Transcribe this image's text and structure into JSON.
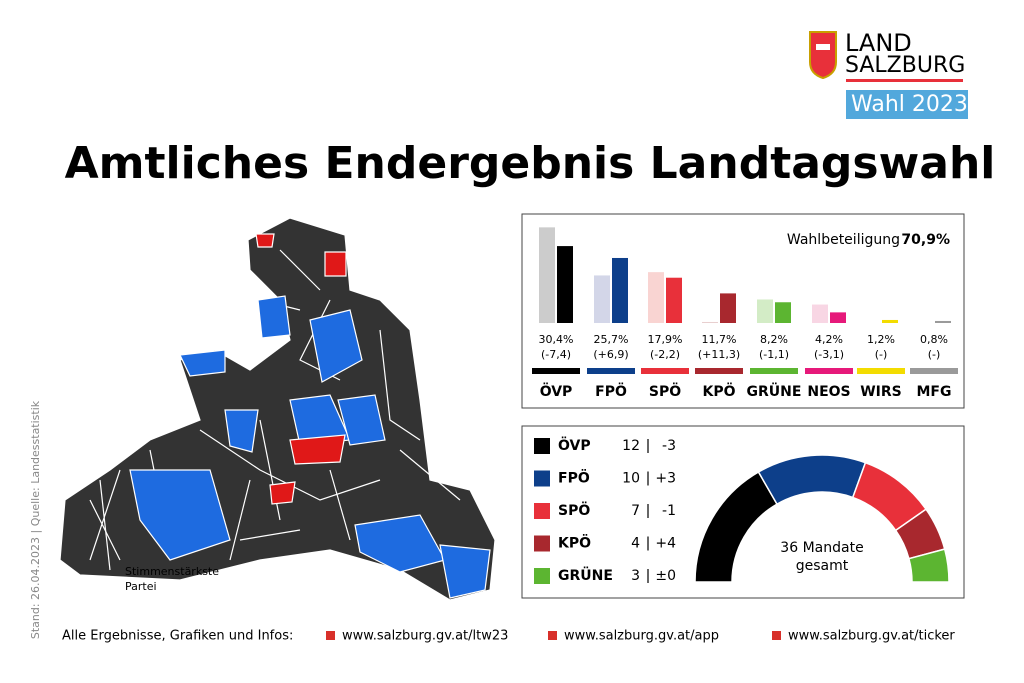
{
  "header": {
    "logo_line1": "LAND",
    "logo_line2": "SALZBURG",
    "badge": "Wahl 2023",
    "title": "Amtliches Endergebnis Landtagswahl"
  },
  "chart_data": [
    {
      "type": "bar",
      "turnout_label": "Wahlbeteiligung",
      "turnout": "70,9%",
      "categories": [
        "ÖVP",
        "FPÖ",
        "SPÖ",
        "KPÖ",
        "GRÜNE",
        "NEOS",
        "WIRS",
        "MFG"
      ],
      "values": [
        30.4,
        25.7,
        17.9,
        11.7,
        8.2,
        4.2,
        1.2,
        0.8
      ],
      "value_labels": [
        "30,4%",
        "25,7%",
        "17,9%",
        "11,7%",
        "8,2%",
        "4,2%",
        "1,2%",
        "0,8%"
      ],
      "previous_values": [
        37.8,
        18.8,
        20.1,
        0.4,
        9.3,
        7.3,
        null,
        null
      ],
      "change_labels": [
        "(-7,4)",
        "(+6,9)",
        "(-2,2)",
        "(+11,3)",
        "(-1,1)",
        "(-3,1)",
        "(-)",
        "(-)"
      ],
      "colors": [
        "#000000",
        "#0d3f8a",
        "#e8303a",
        "#a8282e",
        "#5cb531",
        "#e6197a",
        "#f3dc00",
        "#9a9a9a"
      ],
      "previous_colors": [
        "#cccccc",
        "#d3d6e8",
        "#f9d4d2",
        "#e8cfcf",
        "#d3ecc6",
        "#f8d6e4",
        "#fbf4b0",
        "#dddddd"
      ]
    },
    {
      "type": "donut",
      "categories": [
        "ÖVP",
        "FPÖ",
        "SPÖ",
        "KPÖ",
        "GRÜNE"
      ],
      "values": [
        12,
        10,
        7,
        4,
        3
      ],
      "change_labels": [
        "-3",
        "+3",
        "-1",
        "+4",
        "±0"
      ],
      "colors": [
        "#000000",
        "#0d3f8a",
        "#e8303a",
        "#a8282e",
        "#5cb531"
      ],
      "total": 36,
      "total_label": "Mandate",
      "total_sub": "gesamt"
    }
  ],
  "map": {
    "label_line1": "Stimmenstärkste",
    "label_line2": "Partei"
  },
  "footer": {
    "intro": "Alle Ergebnisse, Grafiken und Infos:",
    "links": [
      "www.salzburg.gv.at/ltw23",
      "www.salzburg.gv.at/app",
      "www.salzburg.gv.at/ticker"
    ],
    "source": "Stand: 26.04.2023 | Quelle: Landesstatistik"
  }
}
